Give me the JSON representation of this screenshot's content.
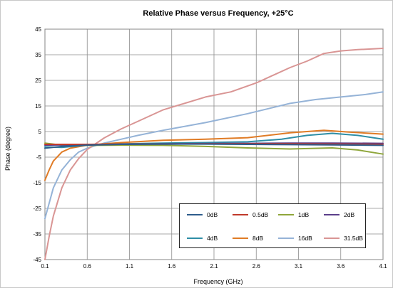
{
  "chart_data": {
    "type": "line",
    "title": "Relative Phase versus Frequency, +25°C",
    "xlabel": "Frequency (GHz)",
    "ylabel": "Phase (degree)",
    "xlim": [
      0.1,
      4.1
    ],
    "ylim": [
      -45,
      45
    ],
    "xticks": [
      0.1,
      0.6,
      1.1,
      1.6,
      2.1,
      2.6,
      3.1,
      3.6,
      4.1
    ],
    "yticks": [
      -45,
      -35,
      -25,
      -15,
      -5,
      5,
      15,
      25,
      35,
      45
    ],
    "grid": true,
    "legend_position": "bottom-right",
    "series": [
      {
        "name": "0dB",
        "color": "#2e5d8c",
        "x": [
          0.1,
          0.3,
          0.6,
          1.0,
          1.5,
          2.0,
          2.5,
          3.0,
          3.5,
          4.1
        ],
        "y": [
          -1.5,
          -0.8,
          -0.3,
          0.0,
          0.1,
          0.1,
          0.0,
          -0.1,
          -0.2,
          -0.4
        ]
      },
      {
        "name": "0.5dB",
        "color": "#c0392b",
        "x": [
          0.1,
          0.3,
          0.6,
          1.0,
          1.5,
          2.0,
          2.5,
          3.0,
          3.5,
          4.1
        ],
        "y": [
          0.0,
          0.0,
          0.0,
          0.1,
          0.1,
          0.2,
          0.2,
          0.2,
          0.1,
          0.0
        ]
      },
      {
        "name": "1dB",
        "color": "#8fa63b",
        "x": [
          0.1,
          0.3,
          0.6,
          1.0,
          1.5,
          2.0,
          2.5,
          3.0,
          3.5,
          3.8,
          4.1
        ],
        "y": [
          0.5,
          -0.3,
          -0.4,
          -0.3,
          -0.4,
          -0.8,
          -1.4,
          -1.8,
          -1.4,
          -2.2,
          -3.8
        ]
      },
      {
        "name": "2dB",
        "color": "#5b3f8a",
        "x": [
          0.1,
          0.3,
          0.6,
          1.0,
          1.5,
          2.0,
          2.5,
          3.0,
          3.5,
          4.1
        ],
        "y": [
          -0.3,
          -0.2,
          -0.1,
          0.0,
          0.2,
          0.3,
          0.4,
          0.5,
          0.5,
          0.4
        ]
      },
      {
        "name": "4dB",
        "color": "#2e8ea6",
        "x": [
          0.1,
          0.3,
          0.6,
          1.0,
          1.5,
          2.0,
          2.5,
          2.9,
          3.2,
          3.5,
          3.8,
          4.1
        ],
        "y": [
          -1.0,
          -1.2,
          -0.3,
          0.2,
          0.5,
          0.7,
          1.0,
          2.0,
          3.5,
          4.3,
          3.5,
          2.0
        ]
      },
      {
        "name": "8dB",
        "color": "#e07b25",
        "x": [
          0.1,
          0.15,
          0.2,
          0.3,
          0.4,
          0.6,
          0.8,
          1.0,
          1.5,
          2.0,
          2.5,
          3.0,
          3.4,
          3.7,
          4.1
        ],
        "y": [
          -14,
          -10,
          -6.5,
          -3,
          -1.5,
          -0.3,
          0.2,
          0.7,
          1.6,
          2.0,
          2.6,
          4.5,
          5.5,
          4.8,
          4.0
        ]
      },
      {
        "name": "16dB",
        "color": "#95b3d7",
        "x": [
          0.1,
          0.2,
          0.3,
          0.4,
          0.5,
          0.6,
          0.8,
          1.0,
          1.2,
          1.5,
          2.0,
          2.5,
          3.0,
          3.3,
          3.6,
          3.9,
          4.1
        ],
        "y": [
          -29,
          -17,
          -10,
          -6,
          -3,
          -1.5,
          0.5,
          2.0,
          3.5,
          5.5,
          8.5,
          12,
          16,
          17.5,
          18.5,
          19.5,
          20.5
        ]
      },
      {
        "name": "31.5dB",
        "color": "#d99594",
        "x": [
          0.1,
          0.15,
          0.2,
          0.3,
          0.4,
          0.5,
          0.6,
          0.8,
          1.0,
          1.2,
          1.5,
          2.0,
          2.3,
          2.6,
          2.8,
          3.0,
          3.2,
          3.4,
          3.6,
          3.8,
          4.1
        ],
        "y": [
          -45,
          -36,
          -28,
          -17,
          -10,
          -5.5,
          -2,
          2.5,
          6,
          9,
          13.5,
          18.5,
          20.5,
          24,
          27,
          30,
          32.5,
          35.5,
          36.5,
          37,
          37.5
        ]
      }
    ]
  }
}
